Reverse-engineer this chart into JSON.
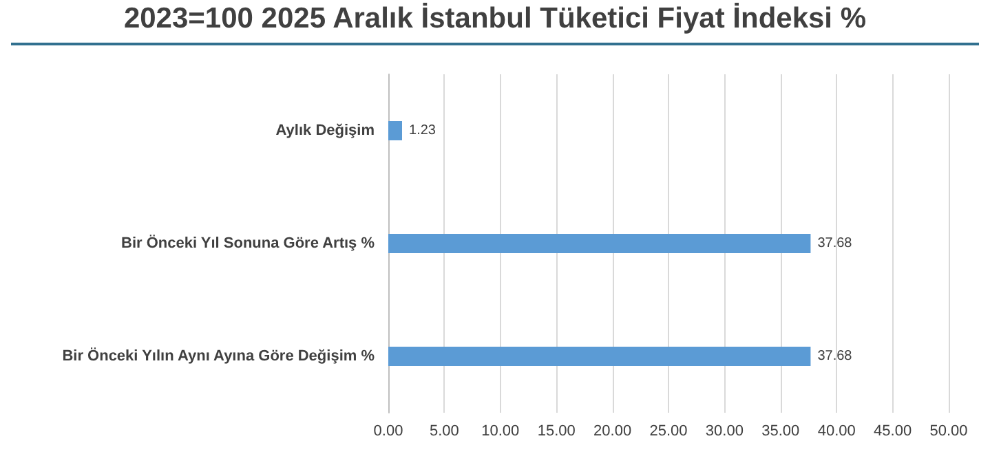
{
  "chart_data": {
    "type": "bar",
    "orientation": "horizontal",
    "title": "2023=100 2025 Aralık İstanbul Tüketici Fiyat İndeksi %",
    "categories": [
      "Aylık Değişim",
      "Bir Önceki Yıl Sonuna Göre Artış %",
      "Bir Önceki Yılın Aynı Ayına Göre Değişim %"
    ],
    "values": [
      1.23,
      37.68,
      37.68
    ],
    "color": "#5b9bd5",
    "data_labels": true,
    "grid": "x",
    "xlim": [
      0,
      50
    ],
    "xticks": [
      {
        "value": 0,
        "label": "0.00"
      },
      {
        "value": 5,
        "label": "5.00"
      },
      {
        "value": 10,
        "label": "10.00"
      },
      {
        "value": 15,
        "label": "15.00"
      },
      {
        "value": 20,
        "label": "20.00"
      },
      {
        "value": 25,
        "label": "25.00"
      },
      {
        "value": 30,
        "label": "30.00"
      },
      {
        "value": 35,
        "label": "35.00"
      },
      {
        "value": 40,
        "label": "40.00"
      },
      {
        "value": 45,
        "label": "45.00"
      },
      {
        "value": 50,
        "label": "50.00"
      }
    ]
  }
}
